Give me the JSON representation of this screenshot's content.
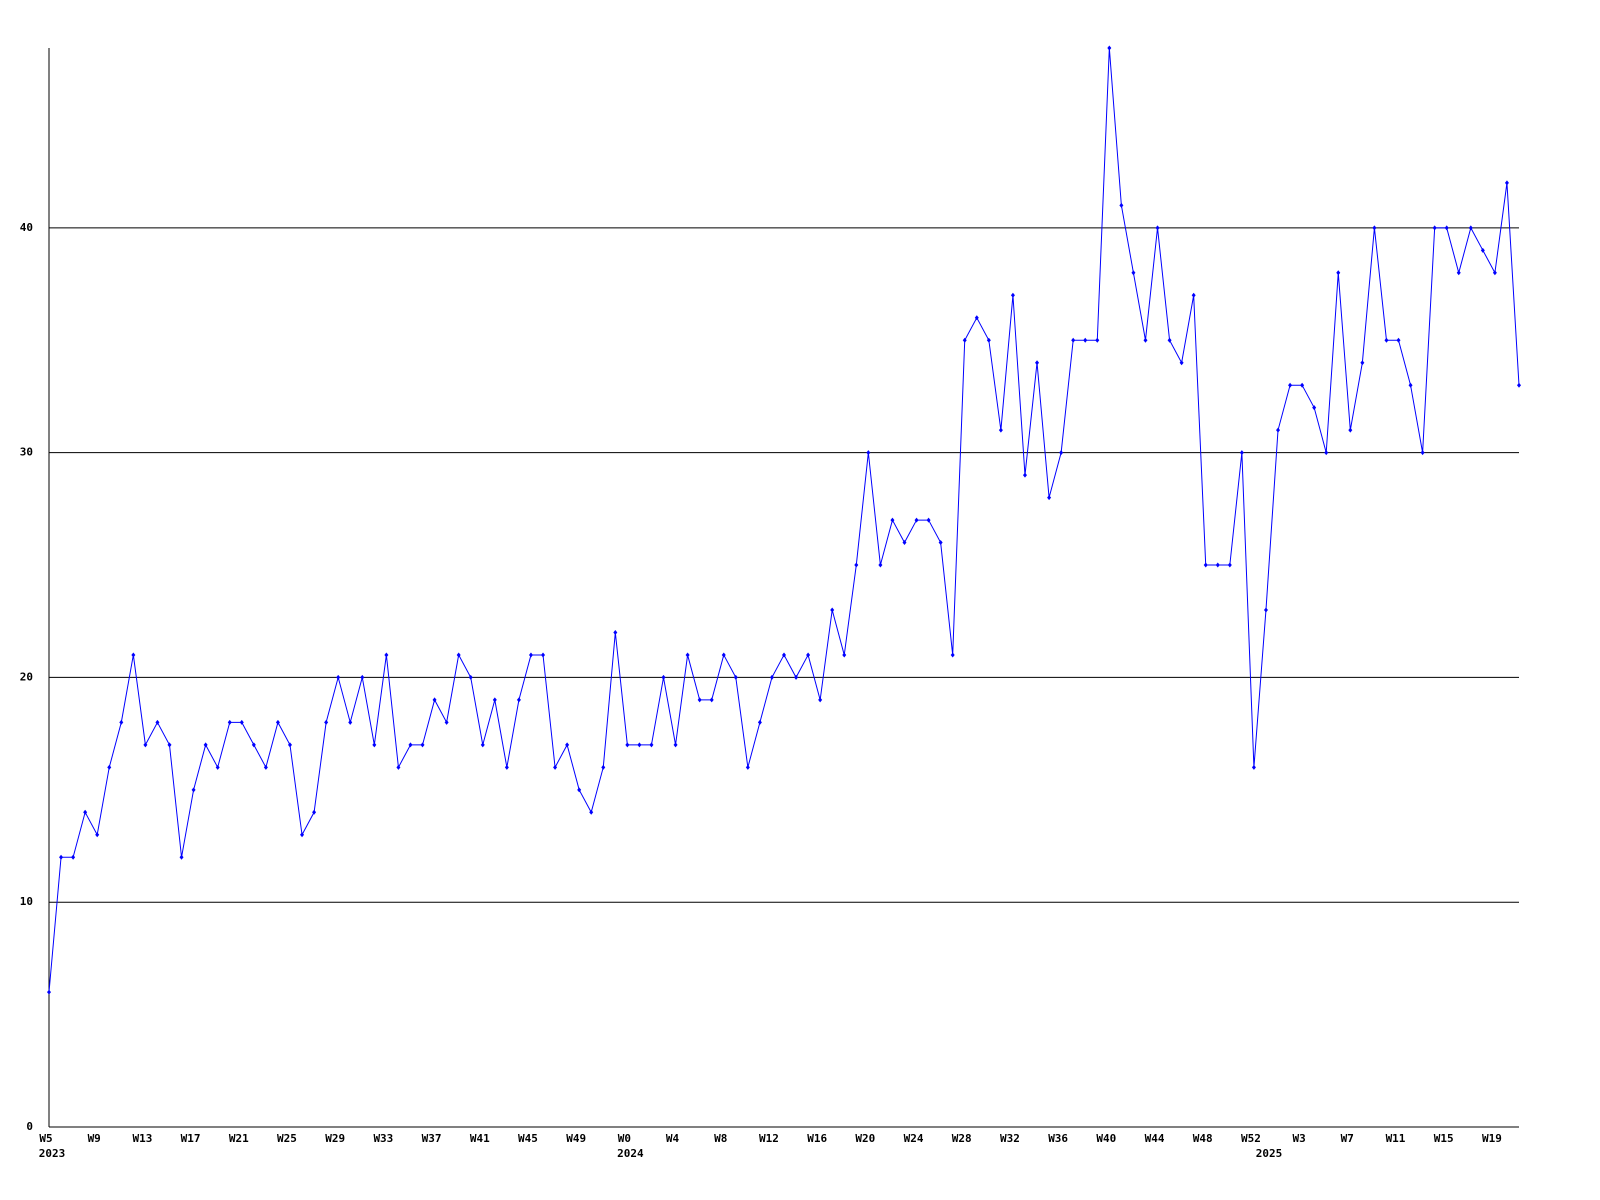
{
  "chart_data": {
    "type": "line",
    "categories": [
      "W5",
      null,
      null,
      null,
      "W9",
      null,
      null,
      null,
      "W13",
      null,
      null,
      null,
      "W17",
      null,
      null,
      null,
      "W21",
      null,
      null,
      null,
      "W25",
      null,
      null,
      null,
      "W29",
      null,
      null,
      null,
      "W33",
      null,
      null,
      null,
      "W37",
      null,
      null,
      null,
      "W41",
      null,
      null,
      null,
      "W45",
      null,
      null,
      null,
      "W49",
      null,
      null,
      null,
      "W0",
      null,
      null,
      null,
      "W4",
      null,
      null,
      null,
      "W8",
      null,
      null,
      null,
      "W12",
      null,
      null,
      null,
      "W16",
      null,
      null,
      null,
      "W20",
      null,
      null,
      null,
      "W24",
      null,
      null,
      null,
      "W28",
      null,
      null,
      null,
      "W32",
      null,
      null,
      null,
      "W36",
      null,
      null,
      null,
      "W40",
      null,
      null,
      null,
      "W44",
      null,
      null,
      null,
      "W48",
      null,
      null,
      null,
      "W52",
      null,
      null,
      null,
      "W3",
      null,
      null,
      null,
      "W7",
      null,
      null,
      null,
      "W11",
      null,
      null,
      null,
      "W15",
      null,
      null,
      null,
      "W19",
      null,
      null
    ],
    "category_years": [
      "2023",
      null,
      null,
      null,
      null,
      null,
      null,
      null,
      null,
      null,
      null,
      null,
      null,
      null,
      null,
      null,
      null,
      null,
      null,
      null,
      null,
      null,
      null,
      null,
      null,
      null,
      null,
      null,
      null,
      null,
      null,
      null,
      null,
      null,
      null,
      null,
      null,
      null,
      null,
      null,
      null,
      null,
      null,
      null,
      null,
      null,
      null,
      null,
      "2024",
      null,
      null,
      null,
      null,
      null,
      null,
      null,
      null,
      null,
      null,
      null,
      null,
      null,
      null,
      null,
      null,
      null,
      null,
      null,
      null,
      null,
      null,
      null,
      null,
      null,
      null,
      null,
      null,
      null,
      null,
      null,
      null,
      null,
      null,
      null,
      null,
      null,
      null,
      null,
      null,
      null,
      null,
      null,
      null,
      null,
      null,
      null,
      null,
      null,
      null,
      null,
      null,
      "2025",
      null,
      null,
      null,
      null,
      null,
      null,
      null,
      null,
      null,
      null,
      null,
      null,
      null,
      null,
      null,
      null,
      null,
      null,
      null,
      null,
      null
    ],
    "series": [
      {
        "color": "#0000ff",
        "values": [
          6,
          12,
          12,
          14,
          13,
          16,
          18,
          21,
          17,
          18,
          17,
          12,
          15,
          17,
          16,
          18,
          18,
          17,
          16,
          18,
          17,
          13,
          14,
          18,
          20,
          18,
          20,
          17,
          21,
          16,
          17,
          17,
          19,
          18,
          21,
          20,
          17,
          19,
          16,
          19,
          21,
          21,
          16,
          17,
          15,
          14,
          16,
          22,
          17,
          17,
          17,
          20,
          17,
          21,
          19,
          19,
          21,
          20,
          16,
          18,
          20,
          21,
          20,
          21,
          19,
          23,
          21,
          25,
          30,
          25,
          27,
          26,
          27,
          27,
          26,
          21,
          35,
          36,
          35,
          31,
          37,
          29,
          34,
          28,
          30,
          35,
          35,
          35,
          48,
          41,
          38,
          35,
          40,
          35,
          34,
          37,
          25,
          25,
          25,
          30,
          16,
          23,
          31,
          33,
          33,
          32,
          30,
          38,
          31,
          34,
          40,
          35,
          35,
          33,
          30,
          40,
          40,
          38,
          40,
          39,
          38,
          42,
          33
        ]
      }
    ],
    "ylim": [
      0,
      48
    ],
    "yticks": [
      0,
      10,
      20,
      30,
      40
    ],
    "grid": true
  }
}
